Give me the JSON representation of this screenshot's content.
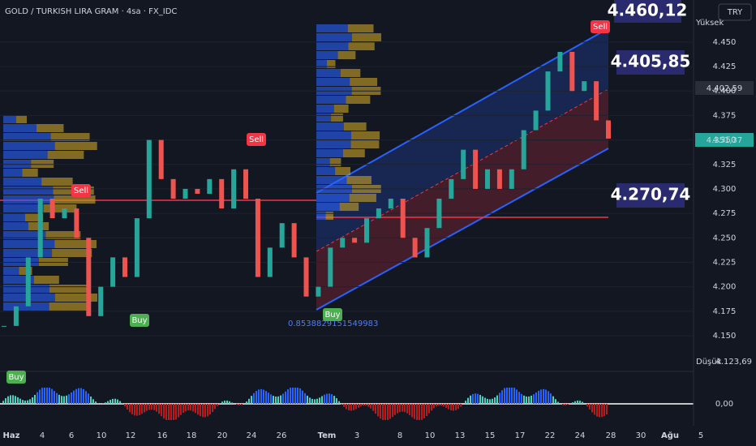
{
  "toolbar": {
    "title": "GOLD / TURKISH LIRA GRAM · 4sa · FX_IDC",
    "currency": "TRY"
  },
  "chart_data": {
    "type": "candlestick",
    "closes": [
      4160,
      4180,
      4230,
      4290,
      4270,
      4280,
      4250,
      4170,
      4200,
      4230,
      4210,
      4270,
      4350,
      4310,
      4290,
      4300,
      4295,
      4310,
      4280,
      4320,
      4290,
      4210,
      4240,
      4265,
      4230,
      4190,
      4200,
      4240,
      4250,
      4245,
      4270,
      4280,
      4290,
      4250,
      4230,
      4260,
      4290,
      4310,
      4340,
      4300,
      4320,
      4300,
      4320,
      4360,
      4380,
      4420,
      4440,
      4400,
      4410,
      4370,
      4351.37
    ],
    "ylim": [
      4116,
      4493
    ],
    "yticks": [
      {
        "value": 4150,
        "label": "4.150"
      },
      {
        "value": 4175,
        "label": "4.175"
      },
      {
        "value": 4200,
        "label": "4.200"
      },
      {
        "value": 4225,
        "label": "4.225"
      },
      {
        "value": 4250,
        "label": "4.250"
      },
      {
        "value": 4275,
        "label": "4.275"
      },
      {
        "value": 4300,
        "label": "4.300"
      },
      {
        "value": 4325,
        "label": "4.325"
      },
      {
        "value": 4350,
        "label": "4.350"
      },
      {
        "value": 4375,
        "label": "4.375"
      },
      {
        "value": 4400,
        "label": "4.400"
      },
      {
        "value": 4425,
        "label": "4.425"
      },
      {
        "value": 4450,
        "label": "4.450"
      }
    ],
    "x_labels": [
      "Haz",
      "4",
      "6",
      "10",
      "12",
      "16",
      "18",
      "20",
      "24",
      "26",
      "Tem",
      "3",
      "8",
      "10",
      "13",
      "15",
      "17",
      "22",
      "24",
      "28",
      "30",
      "Ağu",
      "5"
    ],
    "up_color": "#26a69a",
    "down_color": "#ef5350",
    "grid": true
  },
  "price_labels": {
    "high_label": "Yüksek",
    "low_label": "Düşük",
    "low_value": "4.123,69",
    "level": "4.402,59",
    "last": "4.351,37"
  },
  "callouts": [
    "4.460,12",
    "4.405,85",
    "4.270,74"
  ],
  "signals": {
    "buy": "Buy",
    "sell": "Sell"
  },
  "fib_label": "0.8538829151549983",
  "oscillator": {
    "zero": "0,00"
  }
}
